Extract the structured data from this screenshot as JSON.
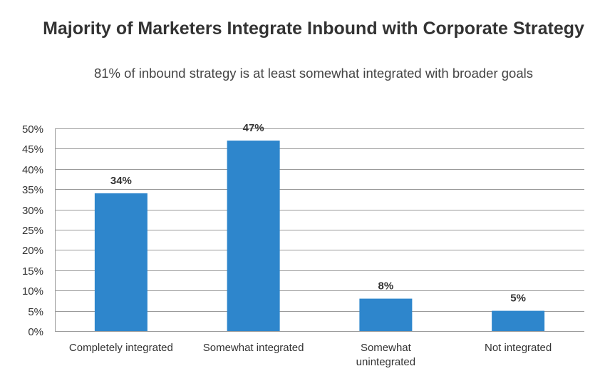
{
  "chart_data": {
    "type": "bar",
    "title": "Majority of Marketers Integrate Inbound with Corporate Strategy",
    "subtitle": "81% of inbound strategy is at least somewhat integrated with broader goals",
    "xlabel": "",
    "ylabel": "",
    "categories": [
      [
        "Completely integrated"
      ],
      [
        "Somewhat integrated"
      ],
      [
        "Somewhat",
        "unintegrated"
      ],
      [
        "Not integrated"
      ]
    ],
    "values": [
      34,
      47,
      8,
      5
    ],
    "data_labels": [
      "34%",
      "47%",
      "8%",
      "5%"
    ],
    "ylim": [
      0,
      50
    ],
    "yticks": [
      0,
      5,
      10,
      15,
      20,
      25,
      30,
      35,
      40,
      45,
      50
    ],
    "ytick_labels": [
      "0%",
      "5%",
      "10%",
      "15%",
      "20%",
      "25%",
      "30%",
      "35%",
      "40%",
      "45%",
      "50%"
    ],
    "grid": true,
    "legend": "none",
    "bar_color": "#2e86cc",
    "grid_color": "#9a9a9a"
  }
}
